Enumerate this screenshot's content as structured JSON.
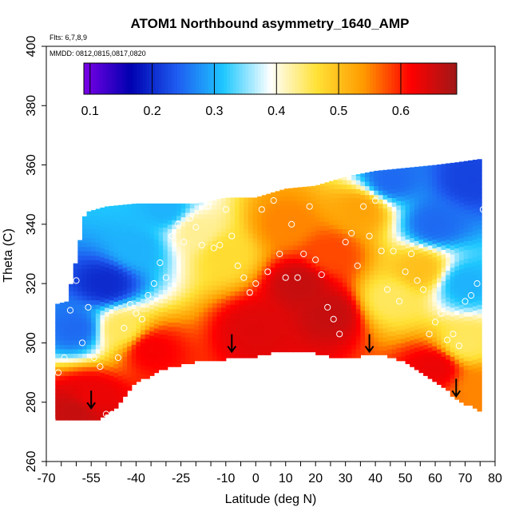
{
  "chart_data": {
    "type": "heatmap",
    "title": "ATOM1 Northbound asymmetry_1640_AMP",
    "flights_note": "Flts: 6,7,8,9",
    "dates_note": "MMDD: 0812,0815,0817,0820",
    "xlabel": "Latitude (deg N)",
    "ylabel": "Theta (C)",
    "xlim": [
      -70,
      80
    ],
    "ylim": [
      260,
      400
    ],
    "x_ticks": [
      -70,
      -55,
      -40,
      -25,
      -10,
      0,
      10,
      20,
      30,
      40,
      50,
      60,
      70,
      80
    ],
    "x_minor_ticks": [
      -70,
      -65,
      -60,
      -55,
      -50,
      -45,
      -40,
      -35,
      -30,
      -25,
      -20,
      -15,
      -10,
      -5,
      0,
      5,
      10,
      15,
      20,
      25,
      30,
      35,
      40,
      45,
      50,
      55,
      60,
      65,
      70,
      75,
      80
    ],
    "y_ticks": [
      260,
      280,
      300,
      320,
      340,
      360,
      380,
      400
    ],
    "colorbar": {
      "min": 0.09,
      "max": 0.69,
      "ticks": [
        0.1,
        0.2,
        0.3,
        0.4,
        0.5,
        0.6
      ],
      "tick_labels": [
        "0.1",
        "0.2",
        "0.3",
        "0.4",
        "0.5",
        "0.6"
      ],
      "colors": [
        "#7a00e6",
        "#0000b0",
        "#1e5cf0",
        "#1ec8ff",
        "#ffffff",
        "#ffe135",
        "#ff9a00",
        "#ff0000",
        "#a01818"
      ]
    },
    "data_top_boundary": [
      [
        -67,
        313
      ],
      [
        -63,
        314
      ],
      [
        -60,
        328
      ],
      [
        -57,
        344
      ],
      [
        -50,
        346
      ],
      [
        -40,
        347
      ],
      [
        -30,
        347
      ],
      [
        -20,
        347
      ],
      [
        -10,
        349
      ],
      [
        0,
        349
      ],
      [
        10,
        352
      ],
      [
        20,
        353
      ],
      [
        30,
        356
      ],
      [
        40,
        358
      ],
      [
        50,
        359
      ],
      [
        60,
        360
      ],
      [
        68,
        361
      ],
      [
        75,
        362
      ]
    ],
    "data_bottom_boundary": [
      [
        -67,
        274
      ],
      [
        -60,
        274
      ],
      [
        -53,
        274
      ],
      [
        -47,
        278
      ],
      [
        -40,
        287
      ],
      [
        -30,
        292
      ],
      [
        -20,
        294
      ],
      [
        -10,
        295
      ],
      [
        0,
        296
      ],
      [
        10,
        298
      ],
      [
        20,
        297
      ],
      [
        30,
        295
      ],
      [
        40,
        297
      ],
      [
        50,
        294
      ],
      [
        60,
        287
      ],
      [
        70,
        280
      ],
      [
        78,
        276
      ]
    ],
    "field_control_points": [
      {
        "lat": 25,
        "theta": 310,
        "value": 0.66
      },
      {
        "lat": 15,
        "theta": 320,
        "value": 0.66
      },
      {
        "lat": 25,
        "theta": 330,
        "value": 0.58
      },
      {
        "lat": 10,
        "theta": 340,
        "value": 0.55
      },
      {
        "lat": 35,
        "theta": 345,
        "value": 0.53
      },
      {
        "lat": -10,
        "theta": 330,
        "value": 0.47
      },
      {
        "lat": -20,
        "theta": 338,
        "value": 0.43
      },
      {
        "lat": -40,
        "theta": 332,
        "value": 0.3
      },
      {
        "lat": -50,
        "theta": 320,
        "value": 0.2
      },
      {
        "lat": -60,
        "theta": 305,
        "value": 0.25
      },
      {
        "lat": -45,
        "theta": 305,
        "value": 0.45
      },
      {
        "lat": -35,
        "theta": 298,
        "value": 0.62
      },
      {
        "lat": -55,
        "theta": 282,
        "value": 0.63
      },
      {
        "lat": -60,
        "theta": 277,
        "value": 0.66
      },
      {
        "lat": 0,
        "theta": 305,
        "value": 0.64
      },
      {
        "lat": 45,
        "theta": 315,
        "value": 0.45
      },
      {
        "lat": 55,
        "theta": 325,
        "value": 0.5
      },
      {
        "lat": 60,
        "theta": 340,
        "value": 0.25
      },
      {
        "lat": 70,
        "theta": 320,
        "value": 0.3
      },
      {
        "lat": 70,
        "theta": 300,
        "value": 0.45
      },
      {
        "lat": 60,
        "theta": 292,
        "value": 0.63
      },
      {
        "lat": 75,
        "theta": 285,
        "value": 0.55
      },
      {
        "lat": 72,
        "theta": 355,
        "value": 0.22
      },
      {
        "lat": 45,
        "theta": 355,
        "value": 0.25
      },
      {
        "lat": -30,
        "theta": 345,
        "value": 0.3
      }
    ],
    "observation_points": [
      [
        -68,
        274
      ],
      [
        -66,
        290
      ],
      [
        -64,
        295
      ],
      [
        -62,
        311
      ],
      [
        -60,
        321
      ],
      [
        -58,
        300
      ],
      [
        -56,
        312
      ],
      [
        -54,
        295
      ],
      [
        -52,
        292
      ],
      [
        -50,
        276
      ],
      [
        -48,
        276
      ],
      [
        -46,
        295
      ],
      [
        -44,
        305
      ],
      [
        -42,
        313
      ],
      [
        -40,
        310
      ],
      [
        -38,
        308
      ],
      [
        -36,
        316
      ],
      [
        -34,
        320
      ],
      [
        -32,
        327
      ],
      [
        -30,
        322
      ],
      [
        -28,
        336
      ],
      [
        -26,
        340
      ],
      [
        -24,
        334
      ],
      [
        -22,
        342
      ],
      [
        -20,
        339
      ],
      [
        -18,
        333
      ],
      [
        -16,
        346
      ],
      [
        -14,
        332
      ],
      [
        -12,
        333
      ],
      [
        -10,
        345
      ],
      [
        -8,
        336
      ],
      [
        -6,
        326
      ],
      [
        -4,
        322
      ],
      [
        -2,
        317
      ],
      [
        0,
        320
      ],
      [
        2,
        345
      ],
      [
        4,
        324
      ],
      [
        6,
        348
      ],
      [
        8,
        330
      ],
      [
        10,
        322
      ],
      [
        12,
        340
      ],
      [
        14,
        322
      ],
      [
        16,
        330
      ],
      [
        18,
        346
      ],
      [
        20,
        328
      ],
      [
        22,
        323
      ],
      [
        24,
        312
      ],
      [
        26,
        308
      ],
      [
        28,
        303
      ],
      [
        30,
        334
      ],
      [
        32,
        337
      ],
      [
        34,
        326
      ],
      [
        36,
        346
      ],
      [
        38,
        336
      ],
      [
        40,
        348
      ],
      [
        42,
        331
      ],
      [
        44,
        318
      ],
      [
        46,
        331
      ],
      [
        48,
        314
      ],
      [
        50,
        324
      ],
      [
        52,
        330
      ],
      [
        54,
        321
      ],
      [
        56,
        318
      ],
      [
        58,
        303
      ],
      [
        60,
        307
      ],
      [
        62,
        310
      ],
      [
        64,
        301
      ],
      [
        66,
        303
      ],
      [
        68,
        299
      ],
      [
        70,
        314
      ],
      [
        72,
        316
      ],
      [
        74,
        320
      ],
      [
        76,
        345
      ],
      [
        78,
        305
      ]
    ],
    "arrows": [
      {
        "lat": -55,
        "theta": 278
      },
      {
        "lat": -8,
        "theta": 297
      },
      {
        "lat": 38,
        "theta": 297
      },
      {
        "lat": 67,
        "theta": 282
      }
    ]
  }
}
